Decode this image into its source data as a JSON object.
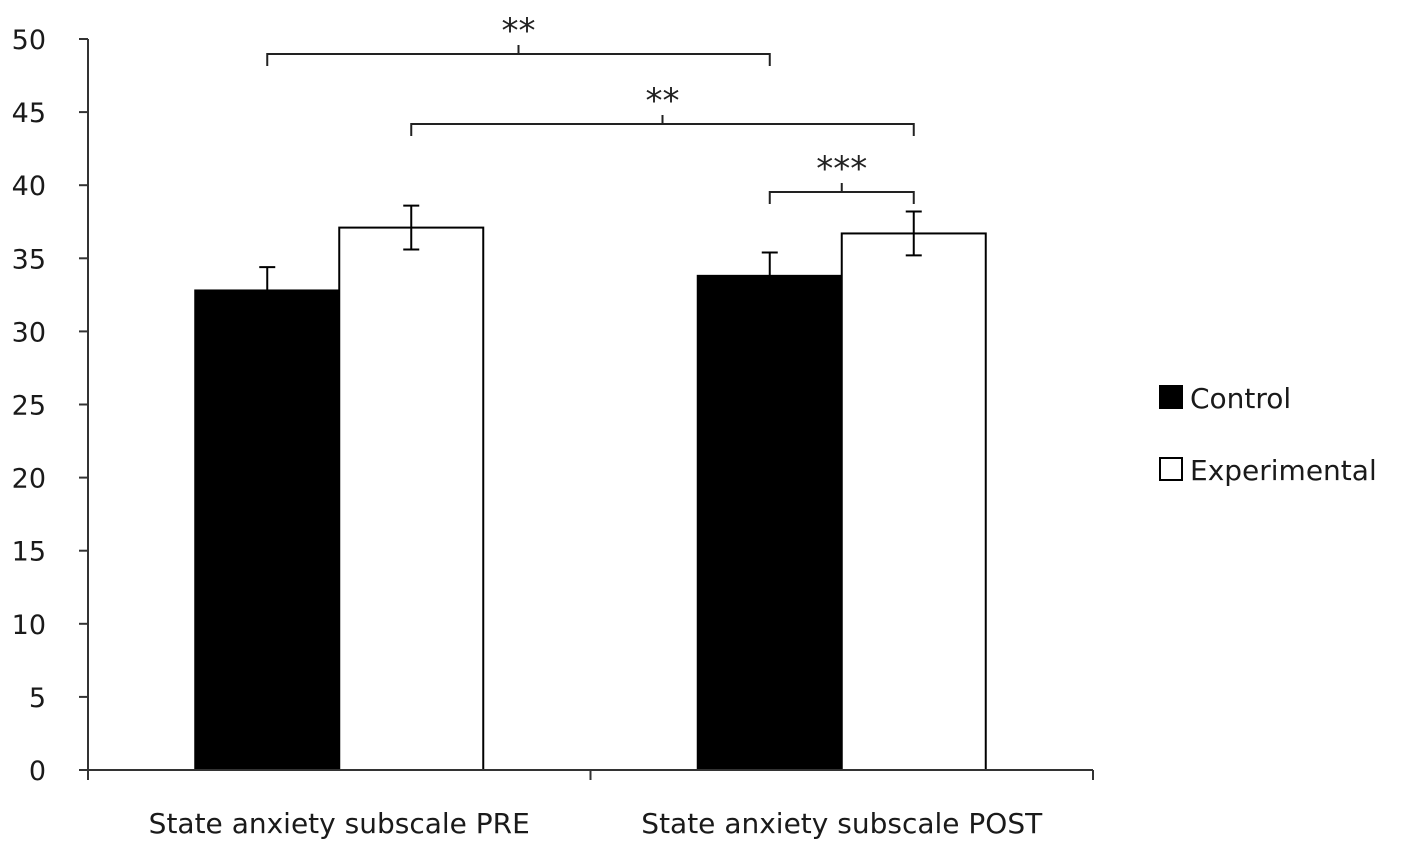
{
  "chart_data": {
    "type": "bar",
    "categories": [
      "State anxiety subscale PRE",
      "State anxiety subscale POST"
    ],
    "series": [
      {
        "name": "Control",
        "values": [
          32.8,
          33.8
        ],
        "errors": [
          1.6,
          1.6
        ],
        "color": "#000000"
      },
      {
        "name": "Experimental",
        "values": [
          37.1,
          36.7
        ],
        "errors": [
          1.5,
          1.5
        ],
        "color": "#ffffff"
      }
    ],
    "ylim": [
      0,
      50
    ],
    "yticks": [
      "0",
      "5",
      "10",
      "15",
      "20",
      "25",
      "30",
      "35",
      "40",
      "45",
      "50"
    ],
    "xlabel": "",
    "ylabel": "",
    "grid": false,
    "legend": "right",
    "significance": [
      {
        "from": [
          0,
          0
        ],
        "to": [
          1,
          0
        ],
        "label": "**"
      },
      {
        "from": [
          0,
          1
        ],
        "to": [
          1,
          1
        ],
        "label": "**"
      },
      {
        "from": [
          1,
          0
        ],
        "to": [
          1,
          1
        ],
        "label": "***"
      }
    ]
  }
}
